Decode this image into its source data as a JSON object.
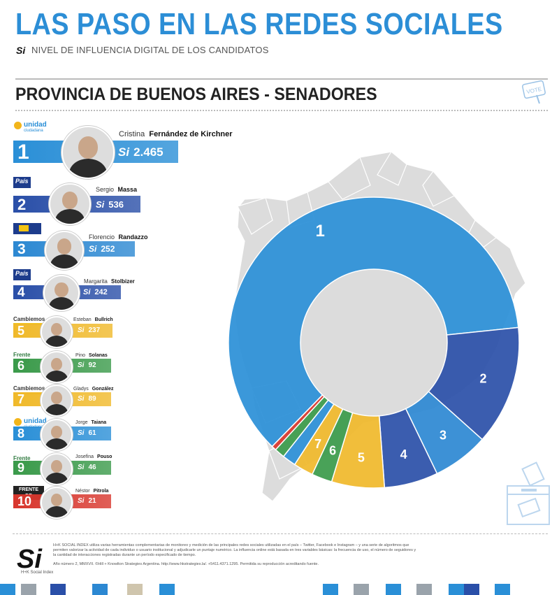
{
  "header": {
    "title": "LAS PASO EN LAS REDES SOCIALES",
    "si_mark": "Si",
    "subtitle": "NIVEL DE INFLUENCIA DIGITAL DE LOS CANDIDATOS",
    "section": "PROVINCIA DE BUENOS AIRES - SENADORES"
  },
  "badge_text": "VOTE",
  "candidates": [
    {
      "rank": "1",
      "first": "Cristina",
      "last": "Fernández de Kirchner",
      "score": "2.465",
      "party": "unidad",
      "party_sub": "ciudadana",
      "color": "#2a8fd7"
    },
    {
      "rank": "2",
      "first": "Sergio",
      "last": "Massa",
      "score": "536",
      "party": "País",
      "color": "#2a4fa8"
    },
    {
      "rank": "3",
      "first": "Florencio",
      "last": "Randazzo",
      "score": "252",
      "party": "",
      "color": "#2c88d2"
    },
    {
      "rank": "4",
      "first": "Margarita",
      "last": "Stolbizer",
      "score": "242",
      "party": "País",
      "color": "#2a4fa8"
    },
    {
      "rank": "5",
      "first": "Esteban",
      "last": "Bullrich",
      "score": "237",
      "party": "Cambiemos",
      "color": "#f0b92a"
    },
    {
      "rank": "6",
      "first": "Pino",
      "last": "Solanas",
      "score": "92",
      "party": "Frente CREO",
      "color": "#3a9a4a"
    },
    {
      "rank": "7",
      "first": "Gladys",
      "last": "González",
      "score": "89",
      "party": "Cambiemos",
      "color": "#f0b92a"
    },
    {
      "rank": "8",
      "first": "Jorge",
      "last": "Taiana",
      "score": "61",
      "party": "unidad",
      "party_sub": "ciudadana",
      "color": "#2a8fd7"
    },
    {
      "rank": "9",
      "first": "Josefina",
      "last": "Pouso",
      "score": "46",
      "party": "Frente CREO",
      "color": "#3a9a4a"
    },
    {
      "rank": "10",
      "first": "Néstor",
      "last": "Pitrola",
      "score": "21",
      "party": "FRENTE DE IZQUIERDA",
      "color": "#d8362d"
    }
  ],
  "chart_data": {
    "type": "pie",
    "title": "PROVINCIA DE BUENOS AIRES - SENADORES",
    "categories": [
      "1",
      "2",
      "3",
      "4",
      "5",
      "6",
      "7",
      "8",
      "9",
      "10"
    ],
    "values": [
      2465,
      536,
      252,
      242,
      237,
      92,
      89,
      61,
      46,
      21
    ],
    "colors": [
      "#2a8fd7",
      "#2a4fa8",
      "#2c88d2",
      "#2a4fa8",
      "#f0b92a",
      "#3a9a4a",
      "#f0b92a",
      "#2a8fd7",
      "#3a9a4a",
      "#d8362d"
    ],
    "donut": true
  },
  "footer": {
    "logo_mark": "Si",
    "logo_caption": "H+K Social Index",
    "text": "H+K SOCIAL INDEX utiliza varias herramientas complementarias de monitoreo y medición de las principales redes sociales utilizadas en el país – Twitter, Facebook e Instagram – y una serie de algoritmos que permiten valorizar la actividad de cada individuo o usuario institucional y adjudicarle un puntaje numérico. La influencia online está basada en tres variables básicas: la frecuencia de uso, el número de seguidores y la cantidad de interacciones registradas durante un período especificado de tiempo.",
    "small": "Año número 2, MMXVII. ©Hill + Knowlton Strategies Argentina. http://www.hkstrategies.la/. +5411.4371.1295. Permitida su reproducción acreditando fuente."
  }
}
